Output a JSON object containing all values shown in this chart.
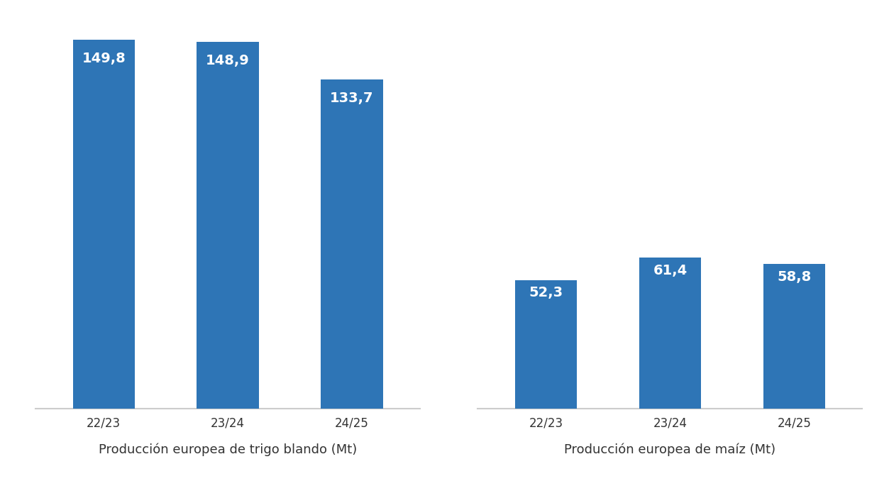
{
  "group1_labels": [
    "22/23",
    "23/24",
    "24/25"
  ],
  "group1_values": [
    149.8,
    148.9,
    133.7
  ],
  "group2_labels": [
    "22/23",
    "23/24",
    "24/25"
  ],
  "group2_values": [
    52.3,
    61.4,
    58.8
  ],
  "bar_color": "#2E75B6",
  "group1_xlabel": "Producción europea de trigo blando (Mt)",
  "group2_xlabel": "Producción europea de maíz (Mt)",
  "ylim": [
    0,
    160
  ],
  "bar_width": 0.5,
  "value_label_color": "#ffffff",
  "value_label_fontsize": 14,
  "tick_label_fontsize": 12,
  "group_label_fontsize": 13,
  "background_color": "#ffffff",
  "spine_color": "#CCCCCC"
}
